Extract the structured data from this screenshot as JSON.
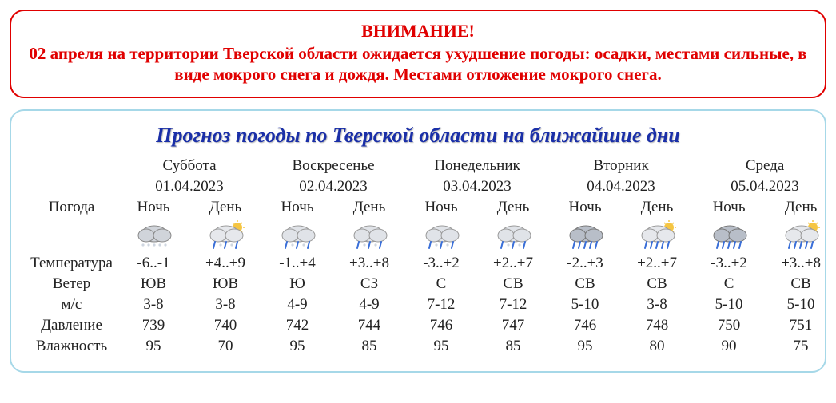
{
  "alert": {
    "title": "ВНИМАНИЕ!",
    "body": "02 апреля на территории Тверской области ожидается ухудшение погоды: осадки, местами сильные, в виде мокрого снега и дождя. Местами отложение мокрого снега."
  },
  "forecast": {
    "title": "Прогноз погоды по Тверской области на ближайшие дни",
    "row_labels": {
      "weather": "Погода",
      "temperature": "Температура",
      "wind": "Ветер",
      "wind_speed": "м/с",
      "pressure": "Давление",
      "humidity": "Влажность"
    },
    "sub_headers": {
      "night": "Ночь",
      "day": "День"
    },
    "days": [
      {
        "name": "Суббота",
        "date": "01.04.2023",
        "night": {
          "icon": "cloud-snow-night",
          "temp": "-6..-1",
          "wind_dir": "ЮВ",
          "wind_spd": "3-8",
          "pressure": "739",
          "humidity": "95"
        },
        "day": {
          "icon": "sun-cloud-sleet",
          "temp": "+4..+9",
          "wind_dir": "ЮВ",
          "wind_spd": "3-8",
          "pressure": "740",
          "humidity": "70"
        }
      },
      {
        "name": "Воскресенье",
        "date": "02.04.2023",
        "night": {
          "icon": "cloud-sleet",
          "temp": "-1..+4",
          "wind_dir": "Ю",
          "wind_spd": "4-9",
          "pressure": "742",
          "humidity": "95"
        },
        "day": {
          "icon": "cloud-sleet",
          "temp": "+3..+8",
          "wind_dir": "СЗ",
          "wind_spd": "4-9",
          "pressure": "744",
          "humidity": "85"
        }
      },
      {
        "name": "Понедельник",
        "date": "03.04.2023",
        "night": {
          "icon": "cloud-sleet",
          "temp": "-3..+2",
          "wind_dir": "С",
          "wind_spd": "7-12",
          "pressure": "746",
          "humidity": "95"
        },
        "day": {
          "icon": "cloud-sleet",
          "temp": "+2..+7",
          "wind_dir": "СВ",
          "wind_spd": "7-12",
          "pressure": "747",
          "humidity": "85"
        }
      },
      {
        "name": "Вторник",
        "date": "04.04.2023",
        "night": {
          "icon": "cloud-rain-dark",
          "temp": "-2..+3",
          "wind_dir": "СВ",
          "wind_spd": "5-10",
          "pressure": "746",
          "humidity": "95"
        },
        "day": {
          "icon": "sun-cloud-rain",
          "temp": "+2..+7",
          "wind_dir": "СВ",
          "wind_spd": "3-8",
          "pressure": "748",
          "humidity": "80"
        }
      },
      {
        "name": "Среда",
        "date": "05.04.2023",
        "night": {
          "icon": "cloud-rain-dark",
          "temp": "-3..+2",
          "wind_dir": "С",
          "wind_spd": "5-10",
          "pressure": "750",
          "humidity": "90"
        },
        "day": {
          "icon": "sun-cloud-rain",
          "temp": "+3..+8",
          "wind_dir": "СВ",
          "wind_spd": "5-10",
          "pressure": "751",
          "humidity": "75"
        }
      }
    ],
    "colors": {
      "alert_border": "#e00000",
      "forecast_border": "#a6d8e8",
      "title_color": "#1a2fa8",
      "temp_night": "#003a9a",
      "temp_day": "#d00000",
      "text": "#222222",
      "background": "#ffffff"
    }
  }
}
